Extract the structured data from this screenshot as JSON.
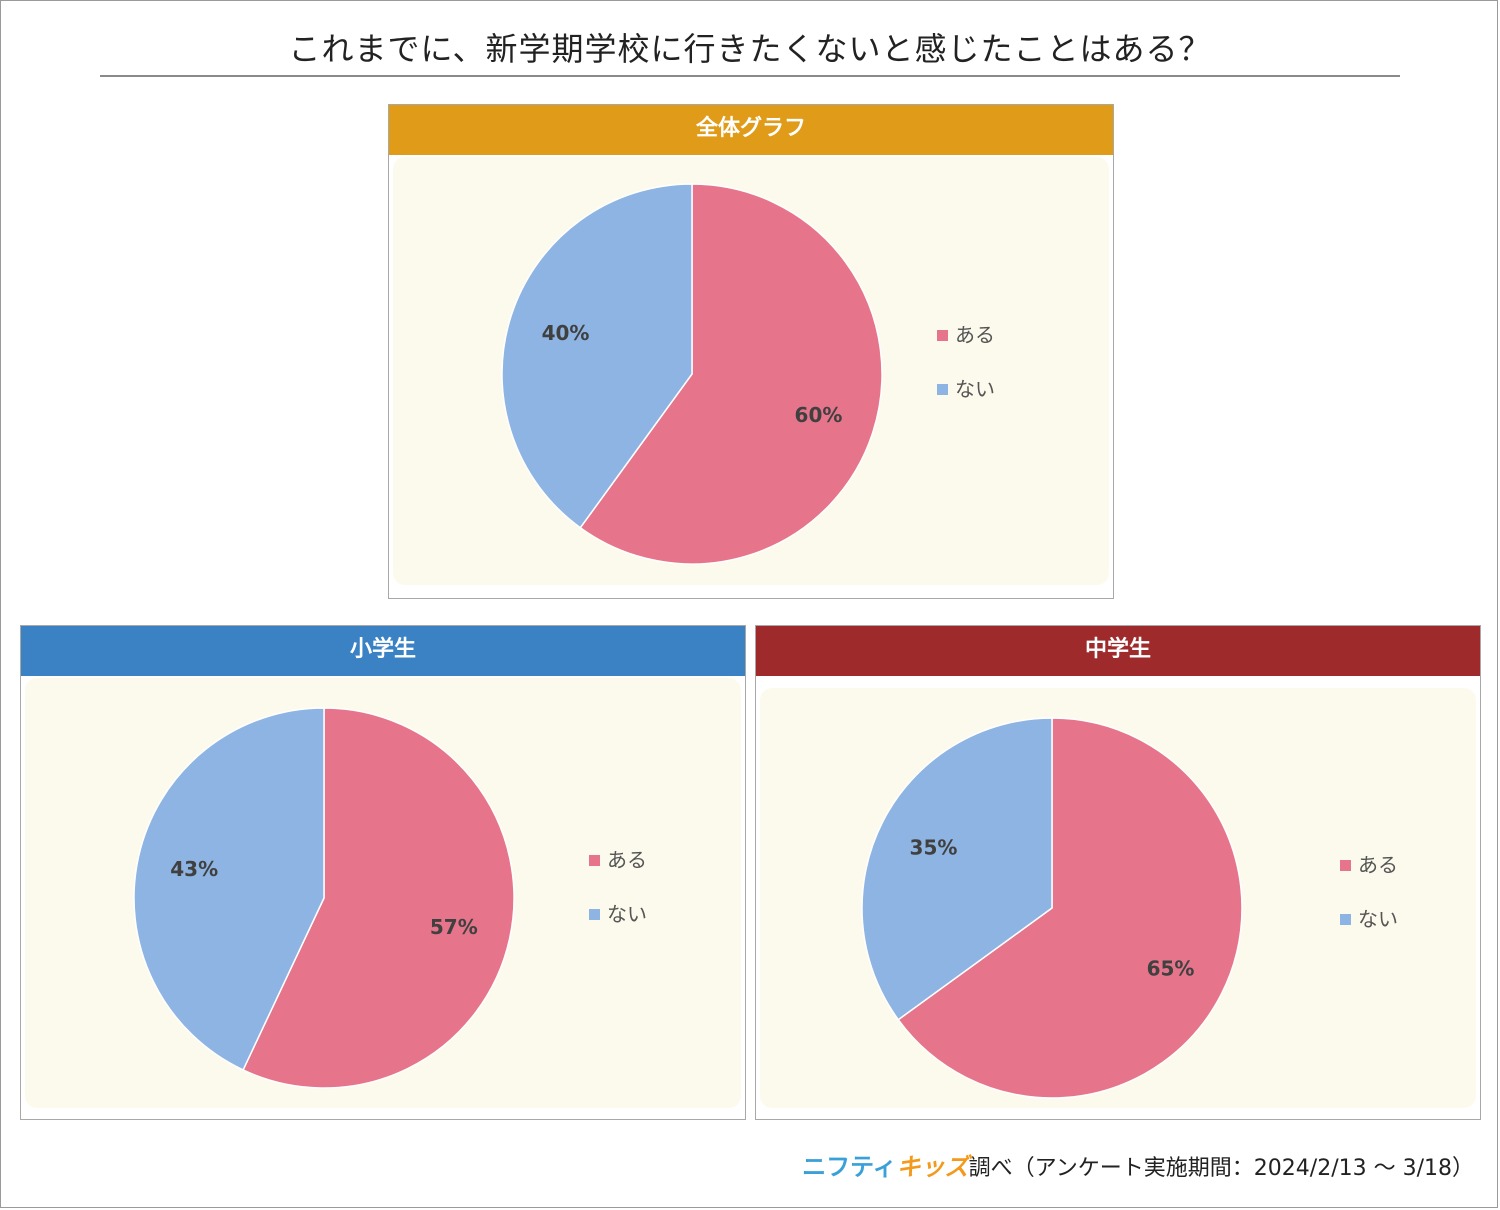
{
  "title": "これまでに、新学期学校に行きたくないと感じたことはある？",
  "colors": {
    "aru": "#e6758c",
    "nai": "#8db4e2",
    "label_text": "#404040",
    "legend_text": "#555555"
  },
  "chart_data": [
    {
      "type": "pie",
      "title": "全体グラフ",
      "header_color": "#e09c18",
      "categories": [
        "ある",
        "ない"
      ],
      "values": [
        60,
        40
      ],
      "labels": [
        "60%",
        "40%"
      ],
      "legend_position": "right"
    },
    {
      "type": "pie",
      "title": "小学生",
      "header_color": "#3a82c4",
      "categories": [
        "ある",
        "ない"
      ],
      "values": [
        57,
        43
      ],
      "labels": [
        "57%",
        "43%"
      ],
      "legend_position": "right"
    },
    {
      "type": "pie",
      "title": "中学生",
      "header_color": "#9e2a2b",
      "categories": [
        "ある",
        "ない"
      ],
      "values": [
        65,
        35
      ],
      "labels": [
        "65%",
        "35%"
      ],
      "legend_position": "right"
    }
  ],
  "source": {
    "logo_part1": "ニフティ",
    "logo_part2": "キッズ",
    "text": "調べ（アンケート実施期間：2024/2/13 ～ 3/18）"
  }
}
